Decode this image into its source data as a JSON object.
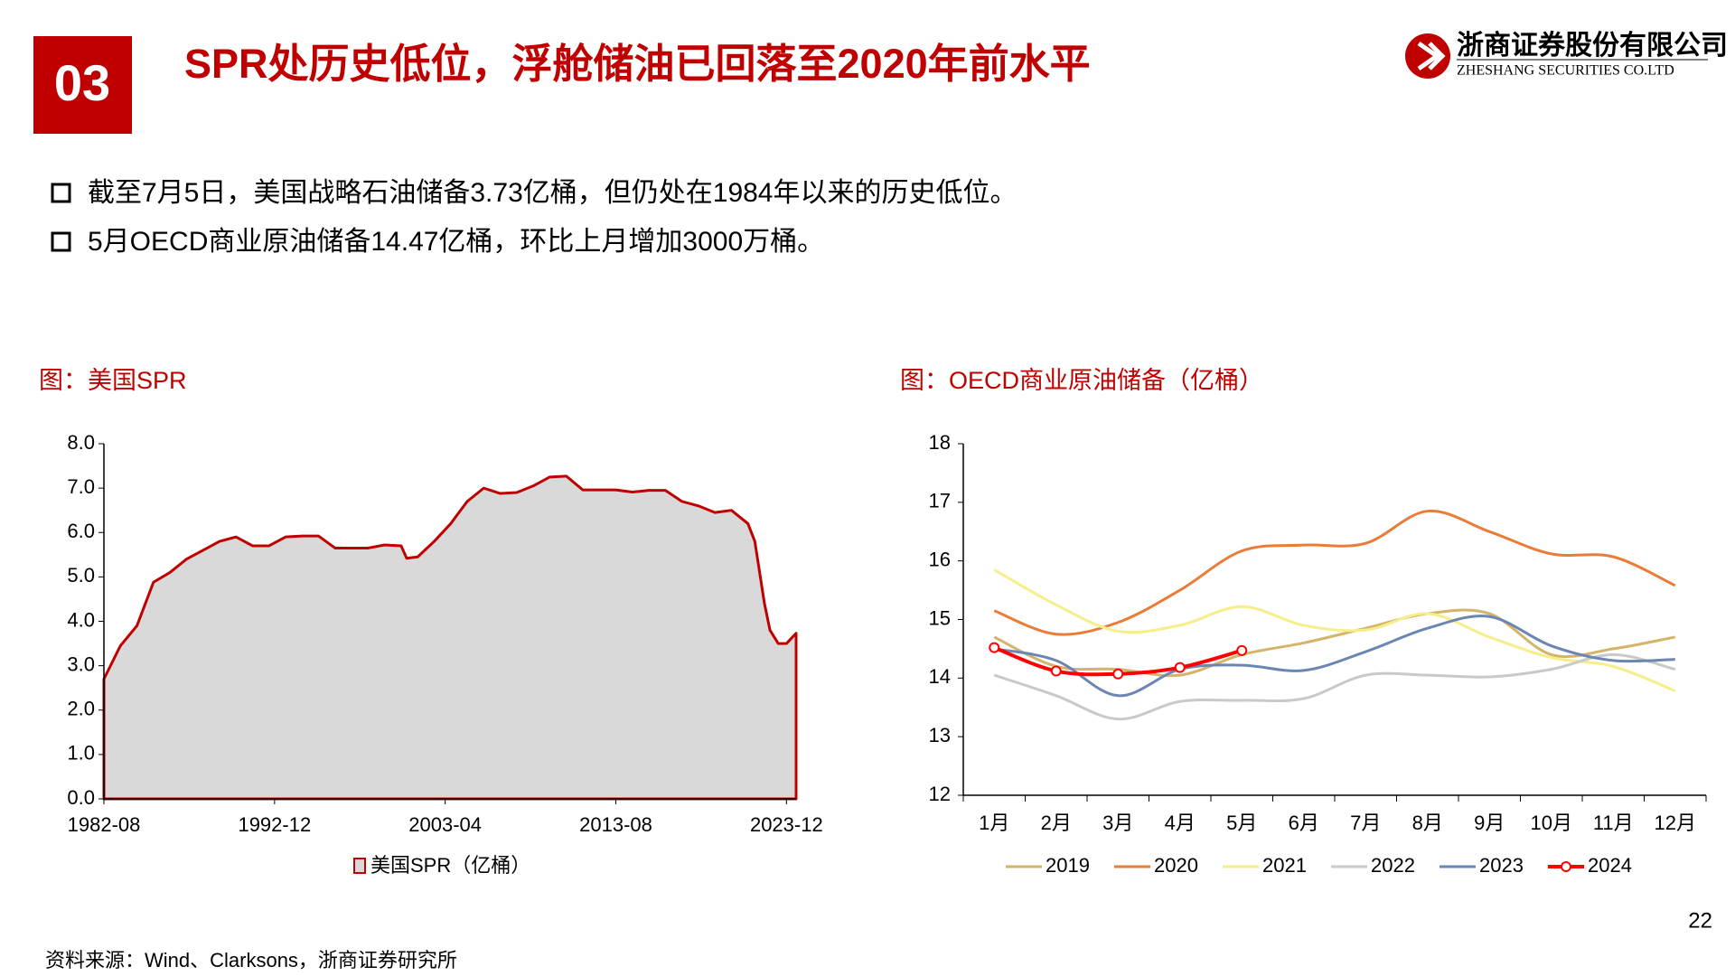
{
  "header": {
    "number": "03",
    "title": "SPR处历史低位，浮舱储油已回落至2020年前水平",
    "company": "浙商证券股份有限公司",
    "company_en": "ZHESHANG SECURITIES CO.LTD"
  },
  "bullets": [
    "截至7月5日，美国战略石油储备3.73亿桶，但仍处在1984年以来的历史低位。",
    "5月OECD商业原油储备14.47亿桶，环比上月增加3000万桶。"
  ],
  "chart_data": [
    {
      "type": "area",
      "title": "图：美国SPR",
      "x": [
        "1982-08",
        "1983-08",
        "1984-08",
        "1985-08",
        "1986-08",
        "1987-08",
        "1988-08",
        "1989-08",
        "1990-08",
        "1991-08",
        "1992-08",
        "1993-08",
        "1994-08",
        "1995-08",
        "1996-08",
        "1997-08",
        "1998-08",
        "1999-08",
        "2000-08",
        "2000-12",
        "2001-08",
        "2002-08",
        "2003-08",
        "2004-08",
        "2005-08",
        "2006-08",
        "2007-08",
        "2008-08",
        "2009-08",
        "2010-08",
        "2011-08",
        "2012-08",
        "2013-08",
        "2014-08",
        "2015-08",
        "2016-08",
        "2017-08",
        "2018-08",
        "2019-08",
        "2020-08",
        "2021-08",
        "2022-01",
        "2022-08",
        "2022-12",
        "2023-06",
        "2023-12",
        "2024-07"
      ],
      "series": [
        {
          "name": "美国SPR（亿桶）",
          "color": "#c00000",
          "fill": "#d9d9d9",
          "values": [
            2.7,
            3.45,
            3.9,
            4.88,
            5.1,
            5.4,
            5.6,
            5.8,
            5.9,
            5.7,
            5.7,
            5.9,
            5.92,
            5.92,
            5.65,
            5.65,
            5.65,
            5.72,
            5.7,
            5.42,
            5.45,
            5.8,
            6.2,
            6.7,
            7.0,
            6.88,
            6.9,
            7.05,
            7.25,
            7.27,
            6.96,
            6.96,
            6.96,
            6.91,
            6.95,
            6.95,
            6.7,
            6.6,
            6.45,
            6.5,
            6.2,
            5.8,
            4.4,
            3.8,
            3.5,
            3.5,
            3.73
          ]
        }
      ],
      "xlim": [
        "1982-08",
        "2024-07"
      ],
      "xticks": [
        "1982-08",
        "1992-12",
        "2003-04",
        "2013-08",
        "2023-12"
      ],
      "ylim": [
        0,
        8
      ],
      "yticks": [
        {
          "value": 0,
          "label": "0.0"
        },
        {
          "value": 1,
          "label": "1.0"
        },
        {
          "value": 2,
          "label": "2.0"
        },
        {
          "value": 3,
          "label": "3.0"
        },
        {
          "value": 4,
          "label": "4.0"
        },
        {
          "value": 5,
          "label": "5.0"
        },
        {
          "value": 6,
          "label": "6.0"
        },
        {
          "value": 7,
          "label": "7.0"
        },
        {
          "value": 8,
          "label": "8.0"
        }
      ],
      "legend": "bottom"
    },
    {
      "type": "line",
      "title": "图：OECD商业原油储备（亿桶）",
      "categories": [
        "1月",
        "2月",
        "3月",
        "4月",
        "5月",
        "6月",
        "7月",
        "8月",
        "9月",
        "10月",
        "11月",
        "12月"
      ],
      "series": [
        {
          "name": "2019",
          "color": "#d4b36a",
          "values": [
            14.7,
            14.2,
            14.15,
            14.05,
            14.4,
            14.6,
            14.85,
            15.1,
            15.1,
            14.4,
            14.5,
            14.7
          ]
        },
        {
          "name": "2020",
          "color": "#e97d38",
          "values": [
            15.15,
            14.75,
            14.95,
            15.5,
            16.17,
            16.27,
            16.3,
            16.85,
            16.5,
            16.12,
            16.07,
            15.58
          ]
        },
        {
          "name": "2021",
          "color": "#f5ee8a",
          "values": [
            15.85,
            15.25,
            14.8,
            14.9,
            15.22,
            14.9,
            14.82,
            15.1,
            14.7,
            14.35,
            14.2,
            13.78
          ]
        },
        {
          "name": "2022",
          "color": "#c9c9c9",
          "values": [
            14.05,
            13.7,
            13.3,
            13.6,
            13.62,
            13.65,
            14.05,
            14.05,
            14.02,
            14.15,
            14.4,
            14.15
          ]
        },
        {
          "name": "2023",
          "color": "#6b86b3",
          "values": [
            14.5,
            14.3,
            13.7,
            14.15,
            14.22,
            14.13,
            14.45,
            14.85,
            15.05,
            14.55,
            14.3,
            14.32
          ]
        },
        {
          "name": "2024",
          "color": "#ff0000",
          "markers": true,
          "values": [
            14.52,
            14.12,
            14.07,
            14.18,
            14.47,
            null,
            null,
            null,
            null,
            null,
            null,
            null
          ]
        }
      ],
      "ylim": [
        12,
        18
      ],
      "yticks": [
        12,
        13,
        14,
        15,
        16,
        17,
        18
      ],
      "legend": "bottom"
    }
  ],
  "page_number": "22",
  "source": "资料来源：Wind、Clarksons，浙商证券研究所"
}
